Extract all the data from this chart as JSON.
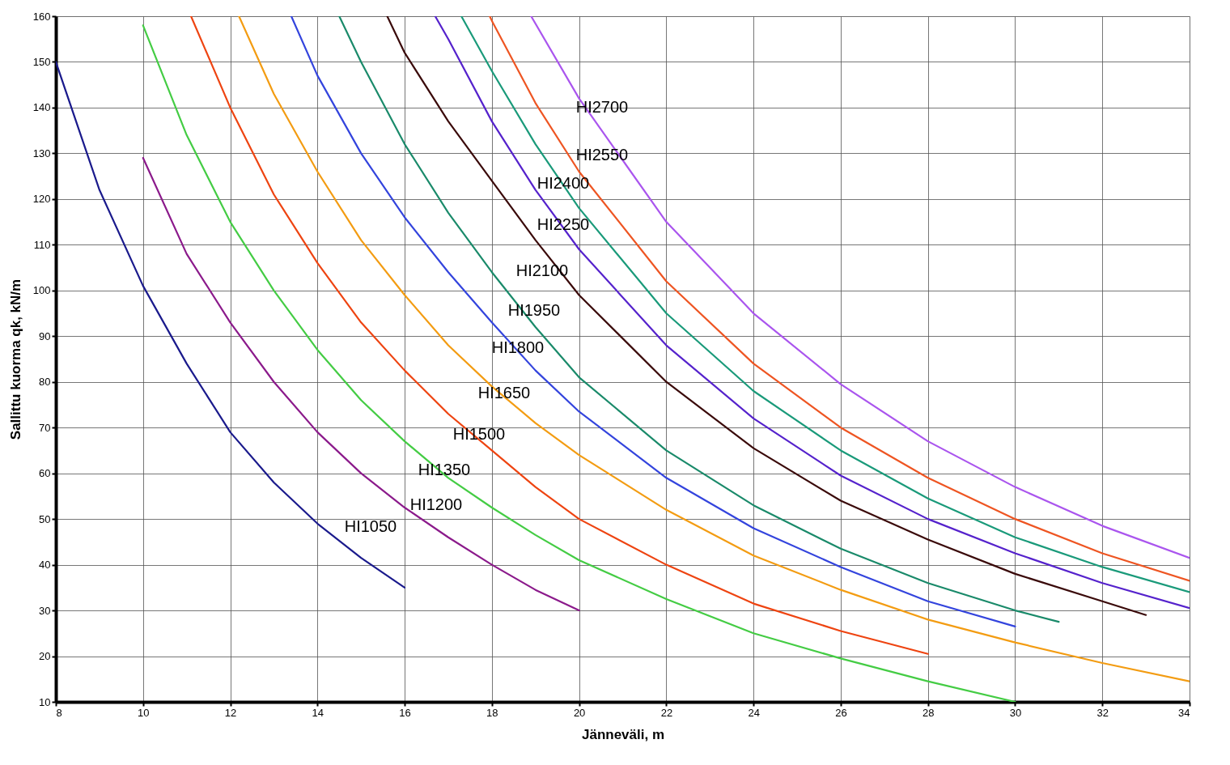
{
  "chart_data": {
    "type": "line",
    "xlabel": "Jänneväli, m",
    "ylabel": "Sallittu kuorma qk, kN/m",
    "xlim": [
      8,
      34
    ],
    "ylim": [
      10,
      160
    ],
    "xticks": [
      8,
      10,
      12,
      14,
      16,
      18,
      20,
      22,
      24,
      26,
      28,
      30,
      32,
      34
    ],
    "yticks": [
      10,
      20,
      30,
      40,
      50,
      60,
      70,
      80,
      90,
      100,
      110,
      120,
      130,
      140,
      150,
      160
    ],
    "grid": true,
    "legend": false,
    "marker": "none",
    "line_style": "solid",
    "series": [
      {
        "name": "HI1050",
        "color": "#1a1a8c",
        "x": [
          8,
          9,
          10,
          11,
          12,
          13,
          14,
          15,
          16
        ],
        "values": [
          150,
          122,
          101,
          84,
          69,
          58,
          49,
          41.5,
          35
        ]
      },
      {
        "name": "HI1200",
        "color": "#8b1a8b",
        "x": [
          10,
          11,
          12,
          13,
          14,
          15,
          16,
          17,
          18,
          19,
          20
        ],
        "values": [
          129,
          108,
          93,
          80,
          69,
          60,
          52.5,
          46,
          40,
          34.5,
          30
        ]
      },
      {
        "name": "HI1350",
        "color": "#44cc44",
        "x": [
          10,
          11,
          12,
          13,
          14,
          15,
          16,
          17,
          18,
          19,
          20,
          22,
          24,
          26,
          28,
          30
        ],
        "values": [
          158,
          134,
          115,
          100,
          87,
          76,
          67,
          59,
          52.5,
          46.5,
          41,
          32.5,
          25,
          19.5,
          14.5,
          10
        ]
      },
      {
        "name": "HI1500",
        "color": "#ee4411",
        "x": [
          11.1,
          12,
          13,
          14,
          15,
          16,
          17,
          18,
          19,
          20,
          22,
          24,
          26,
          28
        ],
        "values": [
          160,
          140,
          121,
          106,
          93,
          82.5,
          73,
          65,
          57,
          50,
          40,
          31.5,
          25.5,
          20.5
        ]
      },
      {
        "name": "HI1650",
        "color": "#f39c12",
        "x": [
          12.2,
          13,
          14,
          15,
          16,
          17,
          18,
          19,
          20,
          22,
          24,
          26,
          28,
          30,
          32,
          34
        ],
        "values": [
          160,
          143,
          126,
          111,
          99,
          88,
          79,
          71,
          64,
          52,
          42,
          34.5,
          28,
          23,
          18.5,
          14.5
        ]
      },
      {
        "name": "HI1800",
        "color": "#3344dd",
        "x": [
          13.4,
          14,
          15,
          16,
          17,
          18,
          19,
          20,
          22,
          24,
          26,
          28,
          30
        ],
        "values": [
          160,
          147,
          130,
          116,
          104,
          93,
          82.5,
          73.5,
          59,
          48,
          39.5,
          32,
          26.5
        ]
      },
      {
        "name": "HI1950",
        "color": "#1a8a6a",
        "x": [
          14.5,
          15,
          16,
          17,
          18,
          19,
          20,
          22,
          24,
          26,
          28,
          30,
          31
        ],
        "values": [
          160,
          150,
          132,
          117,
          104,
          92,
          81,
          65,
          53,
          43.5,
          36,
          30,
          27.5
        ]
      },
      {
        "name": "HI2100",
        "color": "#3a0a0a",
        "x": [
          15.6,
          16,
          17,
          18,
          19,
          20,
          22,
          24,
          26,
          28,
          30,
          32,
          33
        ],
        "values": [
          160,
          152,
          137,
          124,
          111,
          99,
          80,
          65.5,
          54,
          45.5,
          38,
          32,
          29
        ]
      },
      {
        "name": "HI2250",
        "color": "#5522cc",
        "x": [
          16.7,
          17,
          18,
          19,
          20,
          22,
          24,
          26,
          28,
          30,
          32,
          34
        ],
        "values": [
          160,
          155,
          137,
          122,
          109,
          88,
          72,
          59.5,
          50,
          42.5,
          36,
          30.5
        ]
      },
      {
        "name": "HI2400",
        "color": "#1a9a7a",
        "x": [
          17.3,
          18,
          19,
          20,
          22,
          24,
          26,
          28,
          30,
          32,
          34
        ],
        "values": [
          160,
          148,
          132,
          118,
          95,
          78,
          65,
          54.5,
          46,
          39.5,
          34
        ]
      },
      {
        "name": "HI2550",
        "color": "#ee5522",
        "x": [
          17.95,
          18,
          19,
          20,
          22,
          24,
          26,
          28,
          30,
          32,
          34
        ],
        "values": [
          160,
          159,
          141,
          126,
          102,
          84,
          70,
          59,
          50,
          42.5,
          36.5
        ]
      },
      {
        "name": "HI2700",
        "color": "#aa55ee",
        "x": [
          18.9,
          20,
          22,
          24,
          26,
          28,
          30,
          32,
          34
        ],
        "values": [
          160,
          142,
          115,
          95,
          79.5,
          67,
          57,
          48.5,
          41.5
        ]
      }
    ]
  }
}
